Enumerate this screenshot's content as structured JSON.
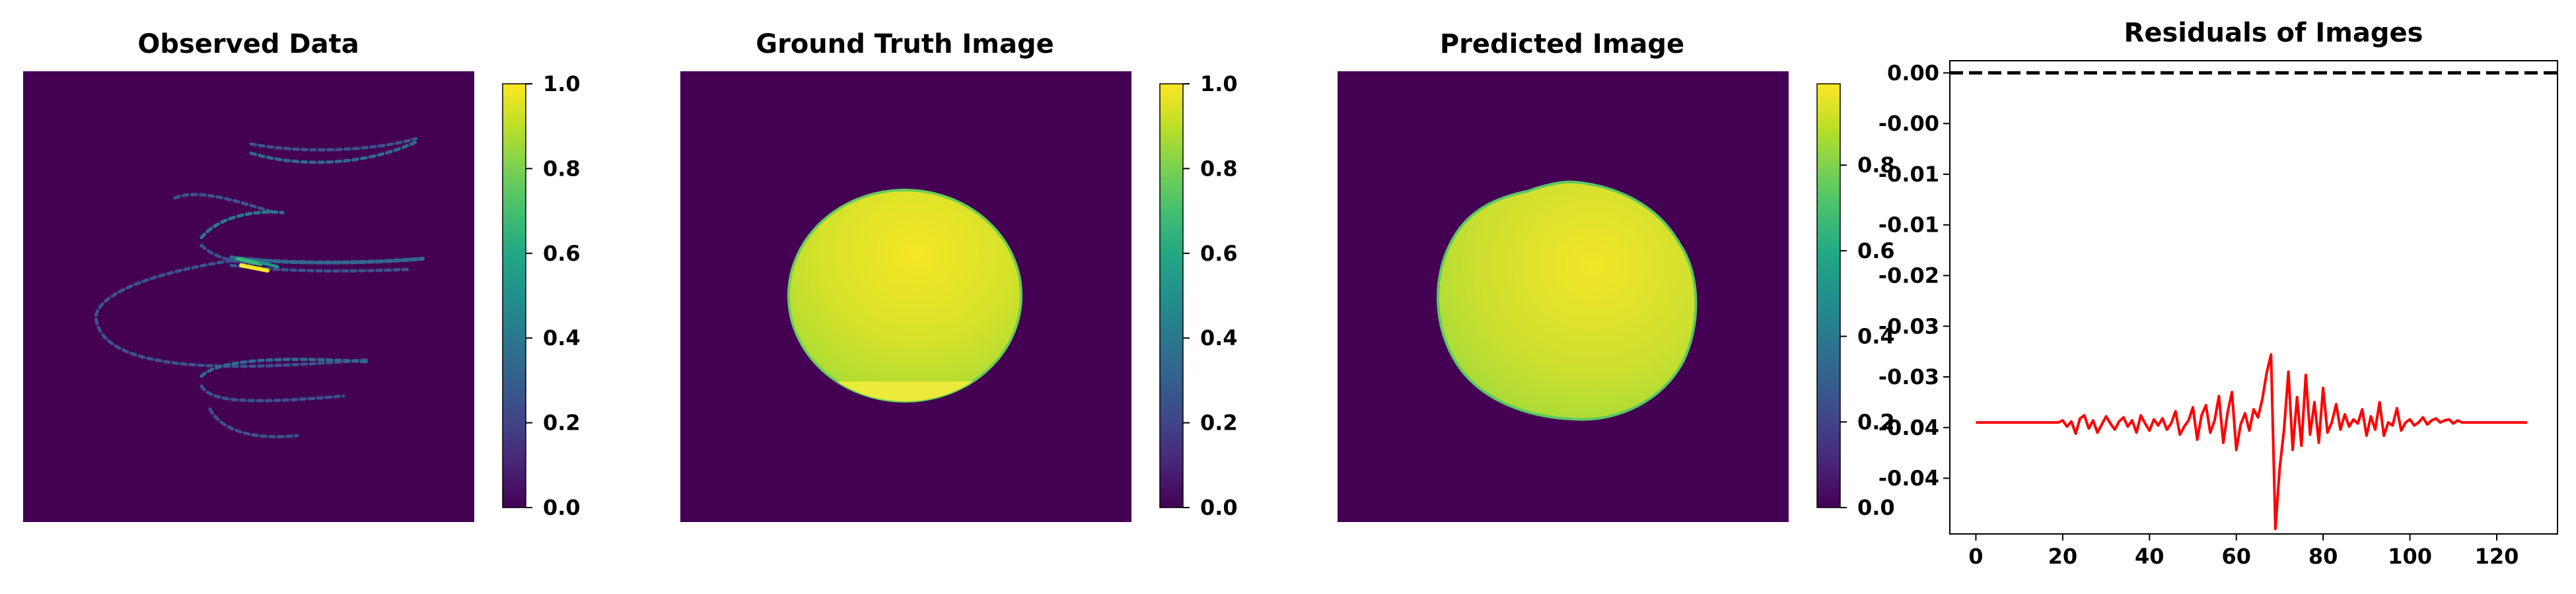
{
  "figure": {
    "panel1": {
      "title": "Observed Data",
      "colorbar_ticks": [
        "0.0",
        "0.2",
        "0.4",
        "0.6",
        "0.8",
        "1.0"
      ],
      "colorbar_range": [
        0.0,
        1.0
      ]
    },
    "panel2": {
      "title": "Ground Truth Image",
      "colorbar_ticks": [
        "0.0",
        "0.2",
        "0.4",
        "0.6",
        "0.8",
        "1.0"
      ],
      "colorbar_range": [
        0.0,
        1.0
      ]
    },
    "panel3": {
      "title": "Predicted Image",
      "colorbar_ticks": [
        "0.0",
        "0.2",
        "0.4",
        "0.6",
        "0.8"
      ],
      "colorbar_range": [
        0.0,
        0.99
      ]
    },
    "colors": {
      "viridis_low": "#440154",
      "viridis_high": "#fde725",
      "residual_line": "#ff0000",
      "zero_line": "#000000"
    }
  },
  "chart_data": {
    "type": "line",
    "title": "Residuals of Images",
    "xlabel": "",
    "ylabel": "",
    "xlim": [
      -6,
      134
    ],
    "ylim": [
      -0.0455,
      0.0012
    ],
    "grid": false,
    "xticks": [
      0,
      20,
      40,
      60,
      80,
      100,
      120
    ],
    "ytick_values": [
      0.0,
      -0.005,
      -0.01,
      -0.015,
      -0.02,
      -0.025,
      -0.03,
      -0.035,
      -0.04
    ],
    "ytick_labels": [
      "0.00",
      "-0.00",
      "-0.01",
      "-0.01",
      "-0.02",
      "-0.03",
      "-0.03",
      "-0.04",
      "-0.04"
    ],
    "reference_line": {
      "y": 0.0,
      "style": "dashed",
      "color": "#000000"
    },
    "series": [
      {
        "color": "#ff0000",
        "x": [
          0,
          19,
          20,
          21,
          22,
          23,
          24,
          25,
          26,
          27,
          28,
          29,
          30,
          31,
          32,
          33,
          34,
          35,
          36,
          37,
          38,
          39,
          40,
          41,
          42,
          43,
          44,
          45,
          46,
          47,
          48,
          49,
          50,
          51,
          52,
          53,
          54,
          55,
          56,
          57,
          58,
          59,
          60,
          61,
          62,
          63,
          64,
          65,
          66,
          67,
          68,
          69,
          70,
          71,
          72,
          73,
          74,
          75,
          76,
          77,
          78,
          79,
          80,
          81,
          82,
          83,
          84,
          85,
          86,
          87,
          88,
          89,
          90,
          91,
          92,
          93,
          94,
          95,
          96,
          97,
          98,
          99,
          100,
          101,
          102,
          103,
          104,
          105,
          106,
          107,
          108,
          109,
          110,
          111,
          112,
          113,
          127
        ],
        "y": [
          -0.0345,
          -0.0345,
          -0.0343,
          -0.0349,
          -0.0344,
          -0.0356,
          -0.0341,
          -0.0338,
          -0.0351,
          -0.0343,
          -0.0355,
          -0.0347,
          -0.0339,
          -0.0346,
          -0.0352,
          -0.0344,
          -0.034,
          -0.0349,
          -0.0343,
          -0.0355,
          -0.0338,
          -0.0346,
          -0.0353,
          -0.0342,
          -0.0348,
          -0.0341,
          -0.0352,
          -0.0346,
          -0.0334,
          -0.0357,
          -0.0349,
          -0.0343,
          -0.033,
          -0.0362,
          -0.0338,
          -0.0328,
          -0.0355,
          -0.0343,
          -0.0319,
          -0.0365,
          -0.0335,
          -0.0315,
          -0.0372,
          -0.0347,
          -0.0336,
          -0.0353,
          -0.0332,
          -0.034,
          -0.0322,
          -0.0296,
          -0.0278,
          -0.045,
          -0.039,
          -0.0352,
          -0.0295,
          -0.0372,
          -0.032,
          -0.0368,
          -0.0298,
          -0.0357,
          -0.0325,
          -0.0365,
          -0.0311,
          -0.0355,
          -0.0345,
          -0.0327,
          -0.0352,
          -0.0337,
          -0.0349,
          -0.0342,
          -0.0346,
          -0.0332,
          -0.0358,
          -0.0339,
          -0.0352,
          -0.0325,
          -0.0358,
          -0.0345,
          -0.0348,
          -0.0331,
          -0.0353,
          -0.0345,
          -0.0342,
          -0.0348,
          -0.0345,
          -0.034,
          -0.0347,
          -0.0343,
          -0.0341,
          -0.0345,
          -0.0343,
          -0.0342,
          -0.0346,
          -0.0343,
          -0.0345,
          -0.0345,
          -0.0345
        ]
      }
    ]
  }
}
